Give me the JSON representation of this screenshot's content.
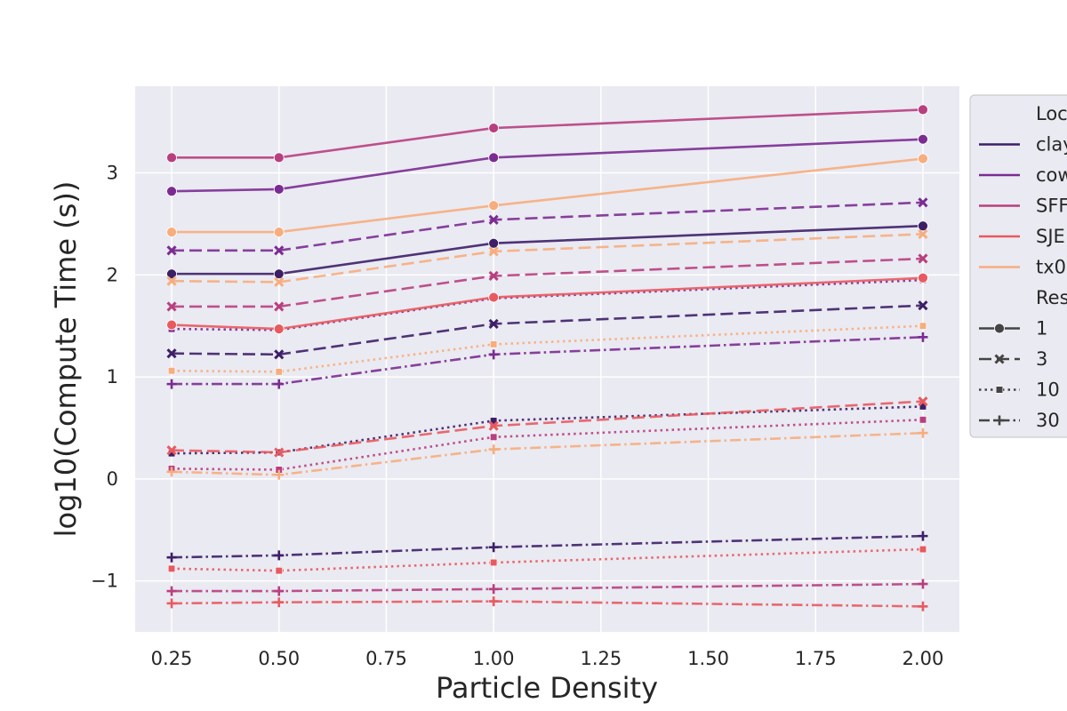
{
  "chart_data": {
    "type": "line",
    "xlabel": "Particle Density",
    "ylabel": "log10(Compute Time (s))",
    "xlim": [
      0.165,
      2.085
    ],
    "ylim": [
      -1.5,
      3.85
    ],
    "xticks": [
      "0.25",
      "0.50",
      "0.75",
      "1.00",
      "1.25",
      "1.50",
      "1.75",
      "2.00"
    ],
    "yticks": [
      "−1",
      "0",
      "1",
      "2",
      "3"
    ],
    "x": [
      0.25,
      0.5,
      1.0,
      2.0
    ],
    "grid": true,
    "legend_position": "right, clipped",
    "hue_colors": {
      "clay": "#3d1f68",
      "cow": "#7b2c92",
      "SFF": "#b83f7f",
      "SJE": "#e85a5f",
      "tx0": "#f7ad7d"
    },
    "series": [
      {
        "location": "clay",
        "res": "1",
        "values": [
          2.01,
          2.01,
          2.31,
          2.48
        ]
      },
      {
        "location": "clay",
        "res": "3",
        "values": [
          1.23,
          1.22,
          1.52,
          1.7
        ]
      },
      {
        "location": "clay",
        "res": "10",
        "values": [
          0.25,
          0.26,
          0.57,
          0.71
        ]
      },
      {
        "location": "clay",
        "res": "30",
        "values": [
          -0.77,
          -0.75,
          -0.67,
          -0.56
        ]
      },
      {
        "location": "cow",
        "res": "1",
        "values": [
          2.82,
          2.84,
          3.15,
          3.33
        ]
      },
      {
        "location": "cow",
        "res": "3",
        "values": [
          2.24,
          2.24,
          2.54,
          2.71
        ]
      },
      {
        "location": "cow",
        "res": "10",
        "values": [
          1.47,
          1.46,
          1.77,
          1.95
        ]
      },
      {
        "location": "cow",
        "res": "30",
        "values": [
          0.93,
          0.93,
          1.22,
          1.39
        ]
      },
      {
        "location": "SFF",
        "res": "1",
        "values": [
          3.15,
          3.15,
          3.44,
          3.62
        ]
      },
      {
        "location": "SFF",
        "res": "3",
        "values": [
          1.69,
          1.69,
          1.99,
          2.16
        ]
      },
      {
        "location": "SFF",
        "res": "10",
        "values": [
          0.1,
          0.09,
          0.41,
          0.58
        ]
      },
      {
        "location": "SFF",
        "res": "30",
        "values": [
          -1.1,
          -1.1,
          -1.08,
          -1.03
        ]
      },
      {
        "location": "SJE",
        "res": "1",
        "values": [
          1.51,
          1.47,
          1.78,
          1.97
        ]
      },
      {
        "location": "SJE",
        "res": "3",
        "values": [
          0.28,
          0.26,
          0.52,
          0.76
        ]
      },
      {
        "location": "SJE",
        "res": "10",
        "values": [
          -0.88,
          -0.9,
          -0.82,
          -0.69
        ]
      },
      {
        "location": "SJE",
        "res": "30",
        "values": [
          -1.22,
          -1.21,
          -1.2,
          -1.25
        ]
      },
      {
        "location": "tx0",
        "res": "1",
        "values": [
          2.42,
          2.42,
          2.68,
          3.14
        ]
      },
      {
        "location": "tx0",
        "res": "3",
        "values": [
          1.94,
          1.93,
          2.23,
          2.4
        ]
      },
      {
        "location": "tx0",
        "res": "10",
        "values": [
          1.06,
          1.05,
          1.32,
          1.5
        ]
      },
      {
        "location": "tx0",
        "res": "30",
        "values": [
          0.07,
          0.04,
          0.29,
          0.45
        ]
      }
    ],
    "legend": {
      "hue_title": "Loc",
      "hue_entries": [
        {
          "key": "clay",
          "label": "clay"
        },
        {
          "key": "cow",
          "label": "cow"
        },
        {
          "key": "SFF",
          "label": "SFF"
        },
        {
          "key": "SJE",
          "label": "SJE"
        },
        {
          "key": "tx0",
          "label": "tx0"
        }
      ],
      "style_title": "Res",
      "style_entries": [
        {
          "key": "1",
          "label": "1"
        },
        {
          "key": "3",
          "label": "3"
        },
        {
          "key": "10",
          "label": "10"
        },
        {
          "key": "30",
          "label": "30"
        }
      ]
    }
  }
}
